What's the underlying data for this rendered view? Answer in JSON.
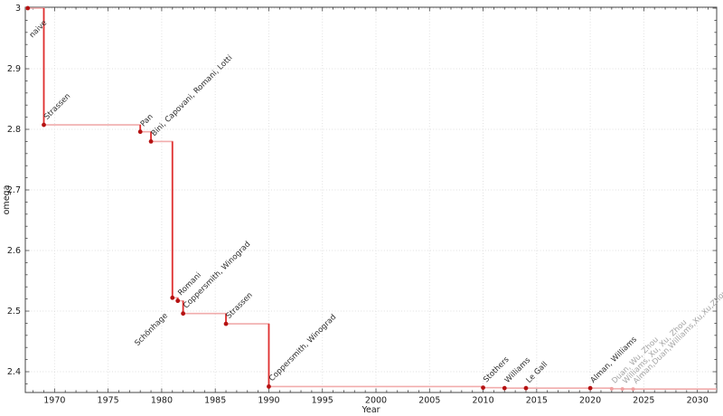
{
  "chart_data": {
    "type": "line",
    "subtype": "step-post",
    "title": "",
    "xlabel": "Year",
    "ylabel": "omega",
    "xlim": [
      1967.27,
      2031.8
    ],
    "ylim": [
      2.3657,
      3.0015
    ],
    "x_major_ticks": [
      1970,
      1975,
      1980,
      1985,
      1990,
      1995,
      2000,
      2005,
      2010,
      2015,
      2020,
      2025,
      2030
    ],
    "x_minor_step": 1,
    "y_major_ticks": [
      2.4,
      2.5,
      2.6,
      2.7,
      2.8,
      2.9,
      3
    ],
    "y_minor_step": 0.02,
    "grid": "dotted",
    "legend": "none",
    "colors": {
      "step_line": "#f1acac",
      "step_drop": "#df3030",
      "marker": "#b51212",
      "marker_pending": "#efa0a0",
      "point_label": "#2b2b2b",
      "point_label_pending": "#a3a3a3",
      "grid_line": "#dfdfdf",
      "axis": "#444444"
    },
    "points": [
      {
        "year": 1967.5,
        "omega": 3,
        "label": "naive",
        "label_pos": "below"
      },
      {
        "year": 1969,
        "omega": 2.8074,
        "label": "Strassen",
        "label_pos": "above"
      },
      {
        "year": 1978,
        "omega": 2.796,
        "label": "Pan",
        "label_pos": "above"
      },
      {
        "year": 1979,
        "omega": 2.78,
        "label": "Bini, Capovani, Romani, Lotti",
        "label_pos": "above"
      },
      {
        "year": 1981,
        "omega": 2.522,
        "label": "Schönhage",
        "label_pos": "left-below"
      },
      {
        "year": 1981.5,
        "omega": 2.517,
        "label": "Romani",
        "label_pos": "above"
      },
      {
        "year": 1982,
        "omega": 2.496,
        "label": "Coppersmith, Winograd",
        "label_pos": "above"
      },
      {
        "year": 1986,
        "omega": 2.479,
        "label": "Strassen",
        "label_pos": "above"
      },
      {
        "year": 1990,
        "omega": 2.3755,
        "label": "Coppersmith, Winograd",
        "label_pos": "above"
      },
      {
        "year": 2010,
        "omega": 2.3737,
        "label": "Stothers",
        "label_pos": "above"
      },
      {
        "year": 2012,
        "omega": 2.3729,
        "label": "Williams",
        "label_pos": "above"
      },
      {
        "year": 2014,
        "omega": 2.3728639,
        "label": "Le Gall",
        "label_pos": "above"
      },
      {
        "year": 2020,
        "omega": 2.3728596,
        "label": "Alman, Williams",
        "label_pos": "above"
      },
      {
        "year": 2022,
        "omega": 2.371866,
        "label": "Duan, Wu, Zhou",
        "label_pos": "above",
        "pending": true
      },
      {
        "year": 2023,
        "omega": 2.371552,
        "label": "Williams, Xu, Xu, Zhou",
        "label_pos": "above",
        "pending": true
      },
      {
        "year": 2024,
        "omega": 2.371339,
        "label": "Alman,Duan,Williams,Xu,Xu,Zhou",
        "label_pos": "above",
        "pending": true
      }
    ]
  }
}
